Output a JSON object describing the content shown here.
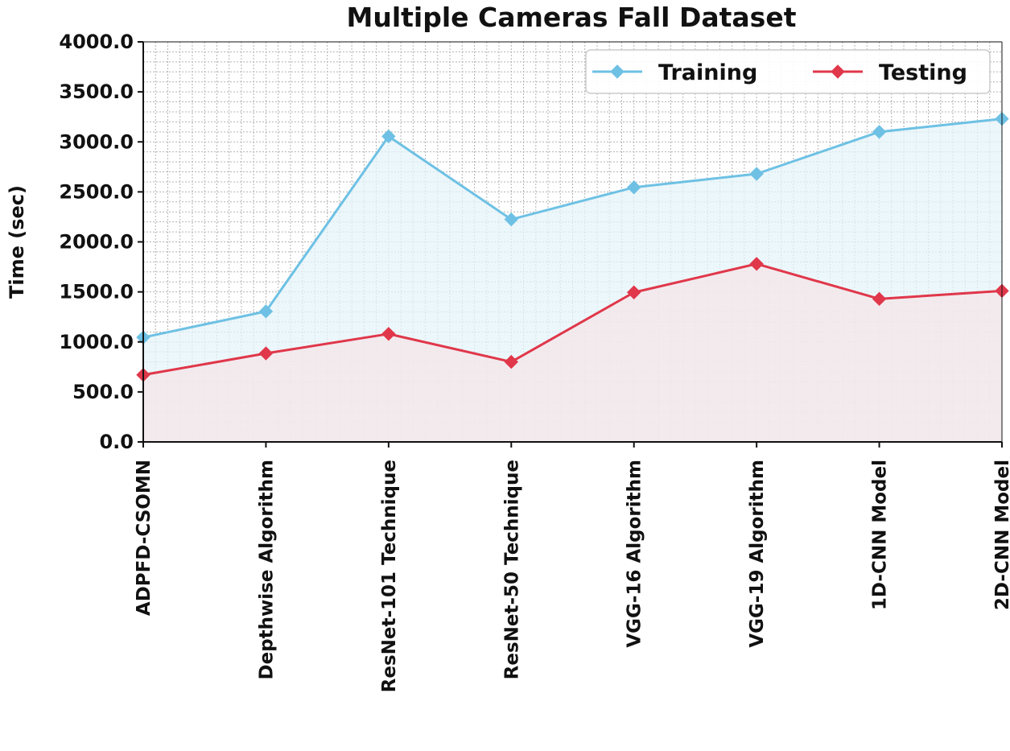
{
  "chart_data": {
    "type": "line",
    "title": "Multiple Cameras Fall Dataset",
    "xlabel": "",
    "ylabel": "Time (sec)",
    "categories": [
      "ADPFD-CSOMN",
      "Depthwise Algorithm",
      "ResNet-101 Technique",
      "ResNet-50 Technique",
      "VGG-16 Algorithm",
      "VGG-19 Algorithm",
      "1D-CNN Model",
      "2D-CNN Model"
    ],
    "ylim": [
      0,
      4000
    ],
    "yticks": [
      0,
      500,
      1000,
      1500,
      2000,
      2500,
      3000,
      3500,
      4000
    ],
    "ytick_labels": [
      "0.0",
      "500.0",
      "1000.0",
      "1500.0",
      "2000.0",
      "2500.0",
      "3000.0",
      "3500.0",
      "4000.0"
    ],
    "grid": true,
    "legend_position": "top-right",
    "series": [
      {
        "name": "Training",
        "color": "#6ec1e4",
        "fill": "#e6f4fa",
        "marker": "diamond",
        "values": [
          1045,
          1305,
          3055,
          2225,
          2545,
          2680,
          3100,
          3230
        ]
      },
      {
        "name": "Testing",
        "color": "#e0374a",
        "fill": "#f5e6e9",
        "marker": "diamond",
        "values": [
          670,
          885,
          1080,
          800,
          1495,
          1780,
          1430,
          1510
        ]
      }
    ]
  }
}
